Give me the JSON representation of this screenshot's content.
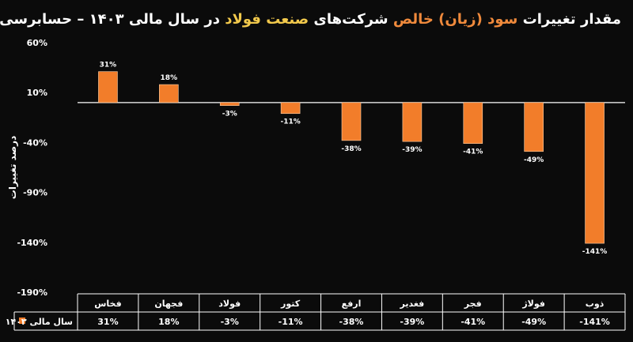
{
  "chart_data": {
    "type": "bar",
    "title_parts": [
      {
        "text": "مقدار تغییرات ",
        "color": "#ffffff"
      },
      {
        "text": "سود (زیان) خالص",
        "color": "#f08a3c"
      },
      {
        "text": " شرکت‌های ",
        "color": "#ffffff"
      },
      {
        "text": "صنعت فولاد",
        "color": "#f2c94c"
      },
      {
        "text": " در سال مالی ۱۴۰۳ ",
        "color": "#ffffff"
      },
      {
        "text": "– حسابرسی نشده",
        "color": "#ffffff"
      }
    ],
    "ylabel": "درصد تغییرات",
    "ylim": [
      -190,
      60
    ],
    "yticks": [
      60,
      10,
      -40,
      -90,
      -140,
      -190
    ],
    "ytick_labels": [
      "60%",
      "10%",
      "-40%",
      "-90%",
      "-140%",
      "-190%"
    ],
    "categories": [
      "فخاس",
      "فجهان",
      "فولاد",
      "کتور",
      "ارفع",
      "فغدیر",
      "فجر",
      "فولاژ",
      "ذوب"
    ],
    "series": [
      {
        "name": "سال مالی ۱۴۰۳",
        "color": "#f27d2a",
        "values": [
          31,
          18,
          -3,
          -11,
          -38,
          -39,
          -41,
          -49,
          -141
        ],
        "labels": [
          "31%",
          "18%",
          "-3%",
          "-11%",
          "-38%",
          "-39%",
          "-41%",
          "-49%",
          "-141%"
        ]
      }
    ],
    "data_table": true,
    "grid": false
  }
}
